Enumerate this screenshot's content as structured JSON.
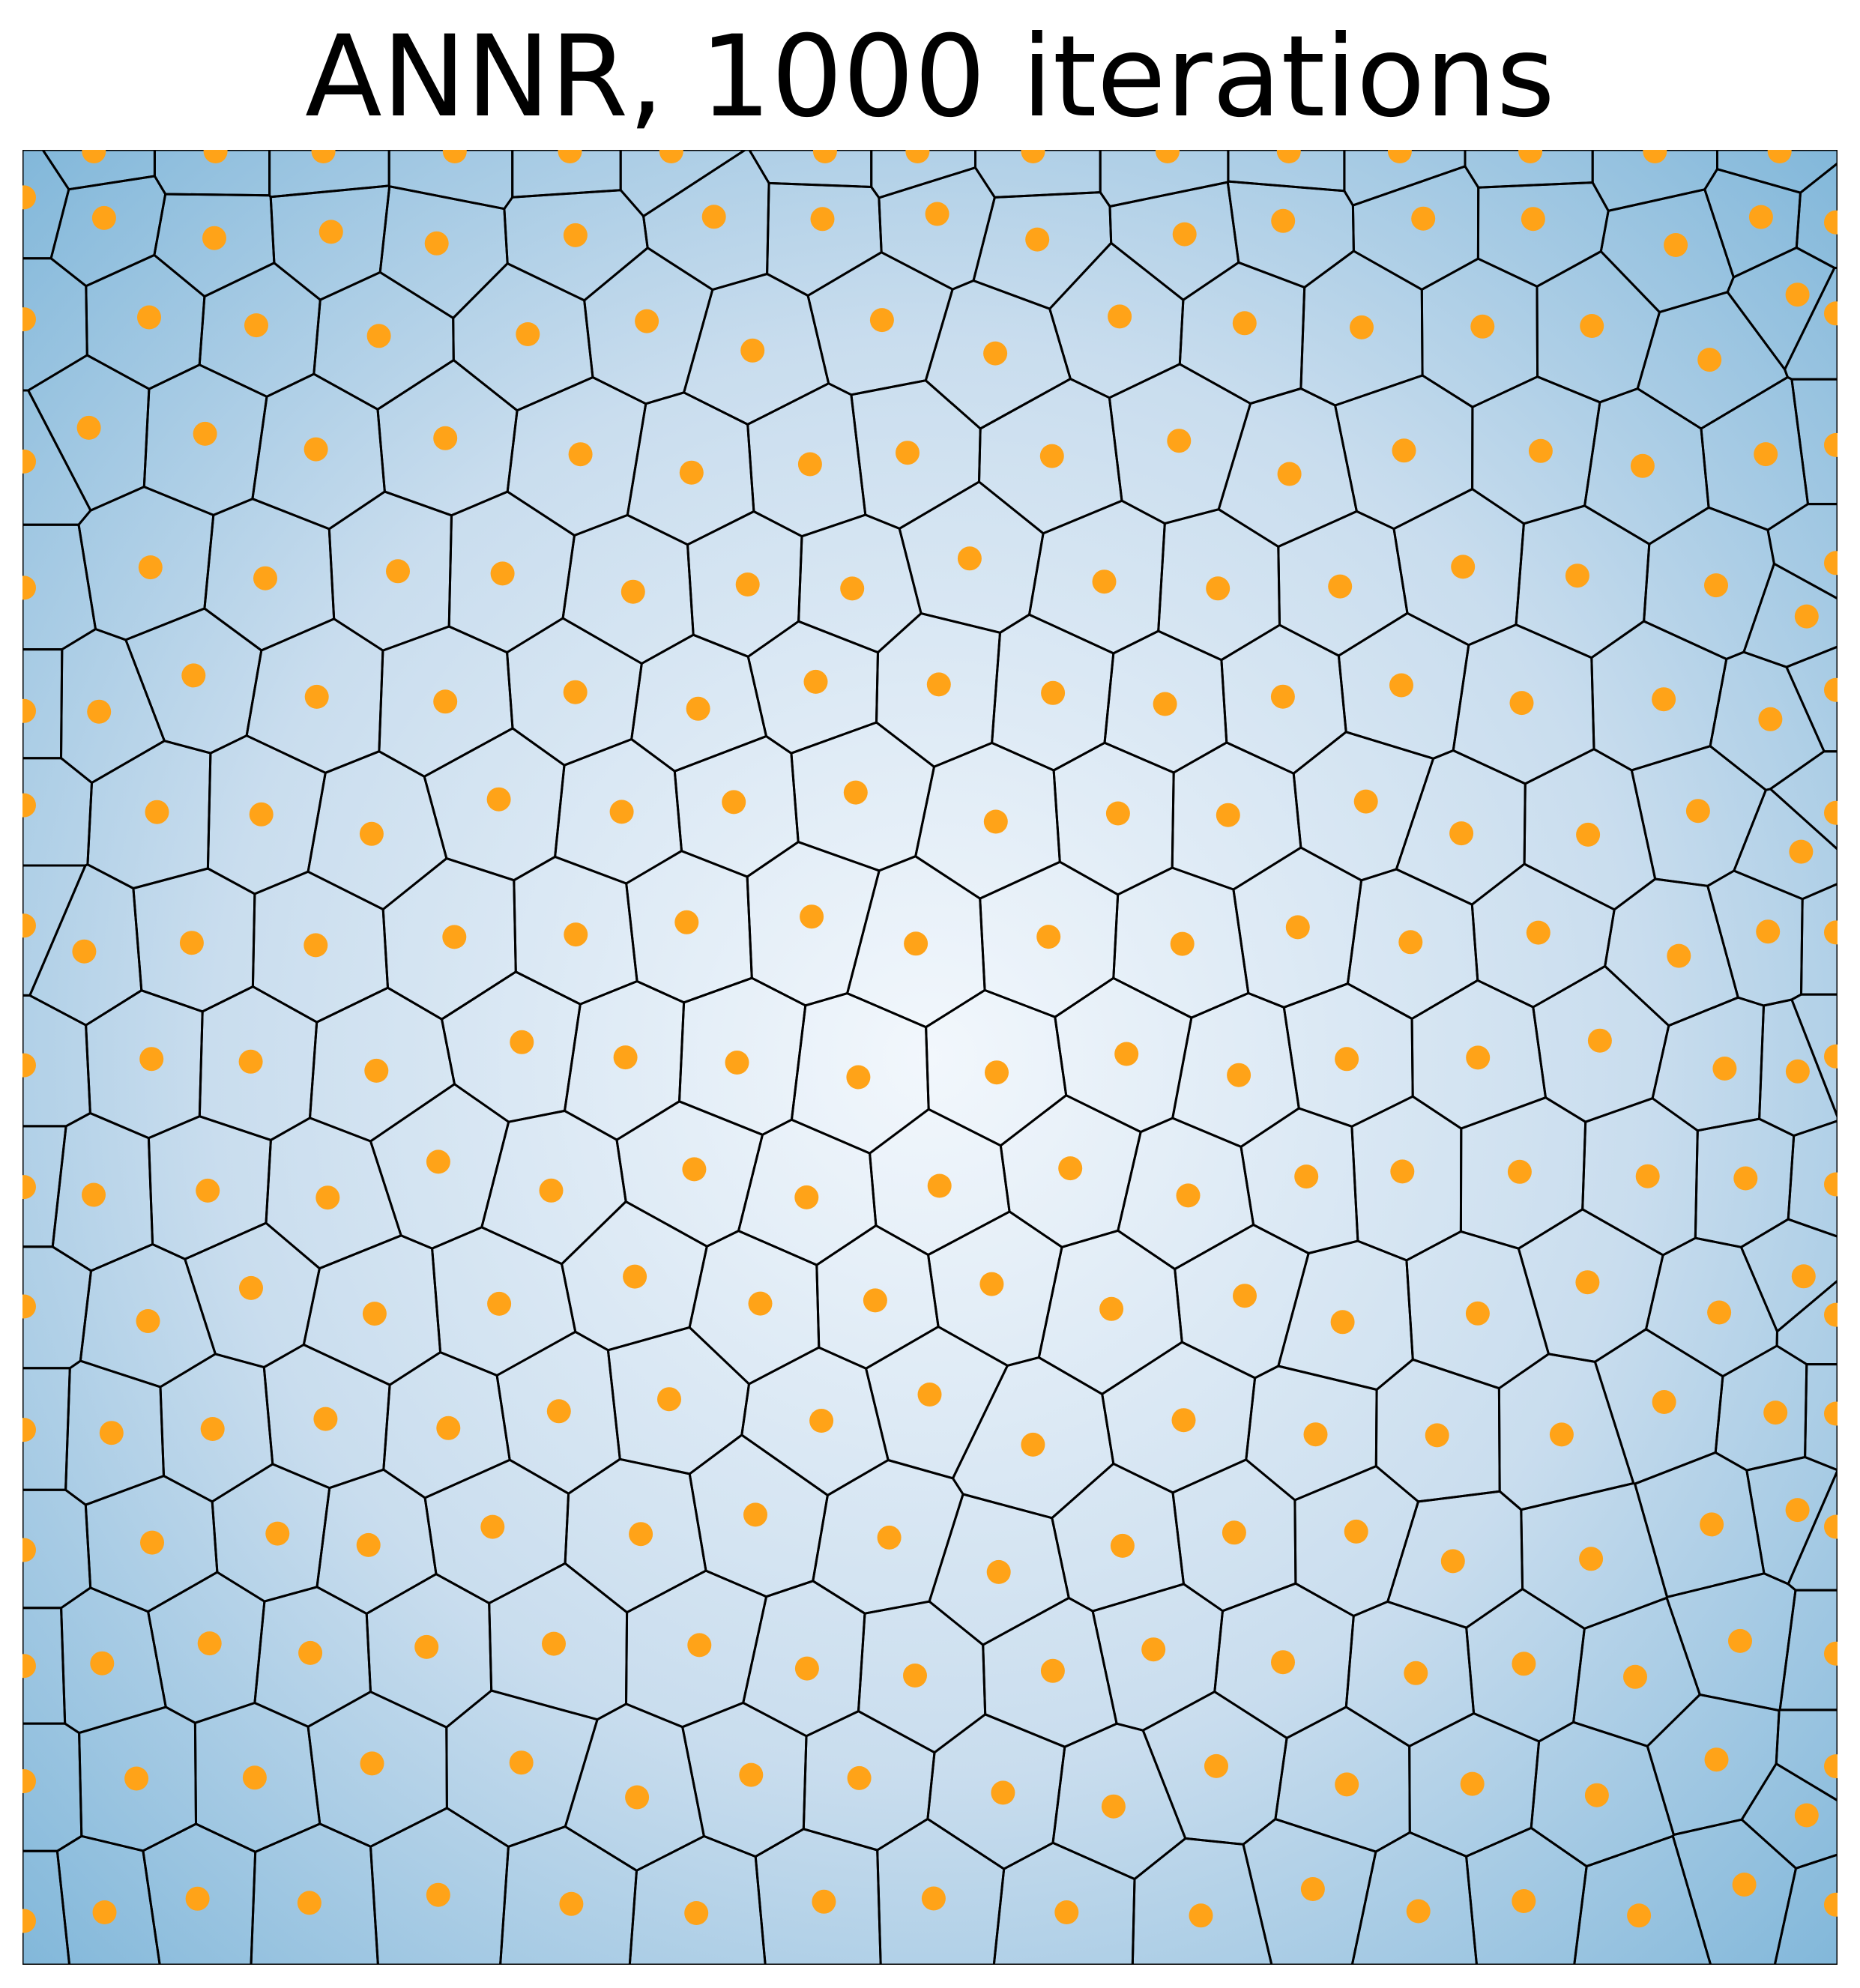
{
  "title": "ANNR, 1000 iterations",
  "colors": {
    "center_fill": "#f2f7fc",
    "edge_fill": "#7fb6d9",
    "cell_border": "#000000",
    "site_point": "#ffa318"
  },
  "diagram": {
    "type": "voronoi",
    "cells_per_row": 15,
    "rows": 15,
    "background_gradient": "radial, light center to blue corners"
  }
}
